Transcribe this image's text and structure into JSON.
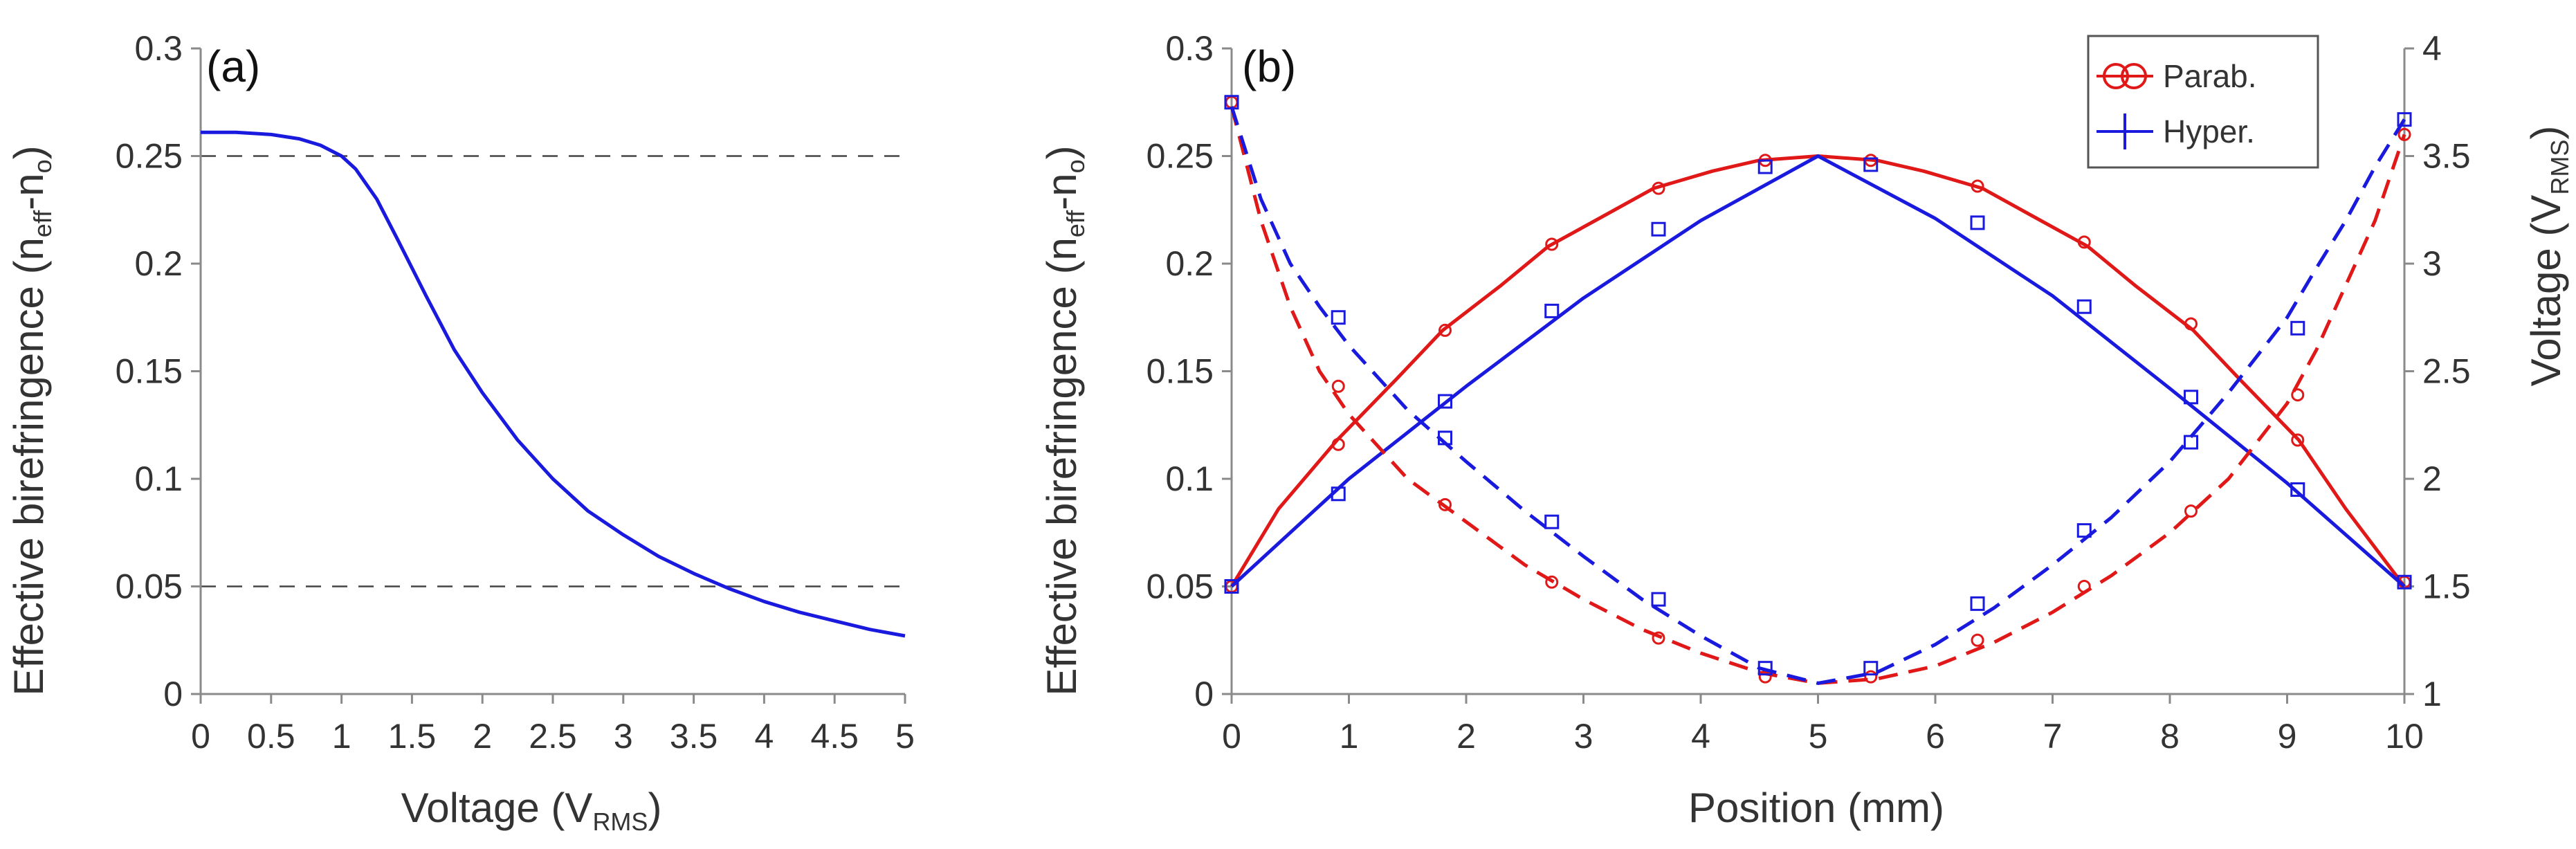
{
  "chart_data": [
    {
      "panel": "(a)",
      "type": "line",
      "xlabel": {
        "main": "Voltage (V",
        "sub": "RMS",
        "close": ")"
      },
      "ylabel": {
        "main": "Effective birefringence (n",
        "sub1": "eff",
        "mid": "-n",
        "sub2": "o",
        "close": ")"
      },
      "xlim": [
        0,
        5
      ],
      "ylim": [
        0,
        0.3
      ],
      "xticks": [
        0,
        0.5,
        1,
        1.5,
        2,
        2.5,
        3,
        3.5,
        4,
        4.5,
        5
      ],
      "xtick_labels": [
        "0",
        "0.5",
        "1",
        "1.5",
        "2",
        "2.5",
        "3",
        "3.5",
        "4",
        "4.5",
        "5"
      ],
      "yticks": [
        0,
        0.05,
        0.1,
        0.15,
        0.2,
        0.25,
        0.3
      ],
      "ytick_labels": [
        "0",
        "0.05",
        "0.1",
        "0.15",
        "0.2",
        "0.25",
        "0.3"
      ],
      "hlines": [
        0.25,
        0.05
      ],
      "series": [
        {
          "name": "birefringence",
          "color": "#1a1adf",
          "style": "solid",
          "x": [
            0,
            0.25,
            0.5,
            0.7,
            0.85,
            1.0,
            1.1,
            1.25,
            1.4,
            1.6,
            1.8,
            2.0,
            2.25,
            2.5,
            2.75,
            3.0,
            3.25,
            3.5,
            3.75,
            4.0,
            4.25,
            4.5,
            4.75,
            5.0
          ],
          "y": [
            0.261,
            0.261,
            0.26,
            0.258,
            0.255,
            0.25,
            0.244,
            0.23,
            0.211,
            0.185,
            0.16,
            0.14,
            0.118,
            0.1,
            0.085,
            0.074,
            0.064,
            0.056,
            0.049,
            0.043,
            0.038,
            0.034,
            0.03,
            0.027
          ]
        }
      ]
    },
    {
      "panel": "(b)",
      "type": "line",
      "xlabel": "Position (mm)",
      "ylabel": {
        "main": "Effective birefringence (n",
        "sub1": "eff",
        "mid": "-n",
        "sub2": "o",
        "close": ")"
      },
      "y2label": {
        "main": "Voltage (V",
        "sub": "RMS",
        "close": ")"
      },
      "xlim": [
        0,
        10
      ],
      "ylim": [
        0,
        0.3
      ],
      "y2lim": [
        1,
        4
      ],
      "xticks": [
        0,
        1,
        2,
        3,
        4,
        5,
        6,
        7,
        8,
        9,
        10
      ],
      "xtick_labels": [
        "0",
        "1",
        "2",
        "3",
        "4",
        "5",
        "6",
        "7",
        "8",
        "9",
        "10"
      ],
      "yticks": [
        0,
        0.05,
        0.1,
        0.15,
        0.2,
        0.25,
        0.3
      ],
      "ytick_labels": [
        "0",
        "0.05",
        "0.1",
        "0.15",
        "0.2",
        "0.25",
        "0.3"
      ],
      "y2ticks": [
        1,
        1.5,
        2,
        2.5,
        3,
        3.5,
        4
      ],
      "y2tick_labels": [
        "1",
        "1.5",
        "2",
        "2.5",
        "3",
        "3.5",
        "4"
      ],
      "legend": {
        "position": "top-right",
        "entries": [
          {
            "label": "Parab.",
            "color": "#e01818"
          },
          {
            "label": "Hyper.",
            "color": "#1a1adf"
          }
        ]
      },
      "series": [
        {
          "name": "Parab. birefringence",
          "color": "#e01818",
          "style": "solid",
          "axis": "left",
          "x": [
            0,
            0.4,
            0.9,
            1.4,
            1.8,
            2.3,
            2.7,
            3.2,
            3.6,
            4.1,
            4.5,
            5.0,
            5.5,
            5.9,
            6.4,
            6.8,
            7.3,
            7.7,
            8.2,
            8.6,
            9.1,
            9.5,
            10.0
          ],
          "y": [
            0.05,
            0.086,
            0.118,
            0.146,
            0.169,
            0.19,
            0.208,
            0.223,
            0.235,
            0.243,
            0.248,
            0.25,
            0.248,
            0.243,
            0.235,
            0.223,
            0.208,
            0.19,
            0.169,
            0.146,
            0.118,
            0.086,
            0.05
          ]
        },
        {
          "name": "Parab. birefringence samples",
          "color": "#e01818",
          "style": "markers",
          "marker": "circle",
          "axis": "left",
          "x": [
            0,
            0.91,
            1.82,
            2.73,
            3.64,
            4.55,
            5.45,
            6.36,
            7.27,
            8.18,
            9.09,
            10.0
          ],
          "y": [
            0.05,
            0.116,
            0.169,
            0.209,
            0.235,
            0.248,
            0.248,
            0.236,
            0.21,
            0.172,
            0.118,
            0.052
          ]
        },
        {
          "name": "Hyper. birefringence",
          "color": "#1a1adf",
          "style": "solid",
          "axis": "left",
          "x": [
            0,
            1,
            2,
            3,
            4,
            5,
            6,
            7,
            8,
            9,
            10
          ],
          "y": [
            0.05,
            0.1,
            0.143,
            0.184,
            0.22,
            0.25,
            0.221,
            0.185,
            0.142,
            0.098,
            0.05
          ]
        },
        {
          "name": "Hyper. birefringence samples",
          "color": "#1a1adf",
          "style": "markers",
          "marker": "square",
          "axis": "left",
          "x": [
            0,
            0.91,
            1.82,
            2.73,
            3.64,
            4.55,
            5.45,
            6.36,
            7.27,
            8.18,
            9.09,
            10.0
          ],
          "y": [
            0.05,
            0.093,
            0.136,
            0.178,
            0.216,
            0.245,
            0.246,
            0.219,
            0.18,
            0.138,
            0.095,
            0.052
          ]
        },
        {
          "name": "Parab. voltage",
          "color": "#e01818",
          "style": "dashed",
          "axis": "right",
          "x": [
            0,
            0.25,
            0.5,
            0.75,
            1,
            1.5,
            2,
            2.5,
            3,
            3.5,
            4,
            4.5,
            5,
            5.5,
            6,
            6.5,
            7,
            7.5,
            8,
            8.5,
            9,
            9.25,
            9.5,
            9.75,
            10
          ],
          "y": [
            3.73,
            3.2,
            2.8,
            2.5,
            2.3,
            2.0,
            1.8,
            1.6,
            1.44,
            1.3,
            1.19,
            1.1,
            1.05,
            1.07,
            1.13,
            1.24,
            1.38,
            1.55,
            1.75,
            2.0,
            2.35,
            2.6,
            2.9,
            3.2,
            3.6
          ]
        },
        {
          "name": "Parab. voltage samples",
          "color": "#e01818",
          "style": "markers",
          "marker": "circle",
          "axis": "right",
          "x": [
            0,
            0.91,
            1.82,
            2.73,
            3.64,
            4.55,
            5.45,
            6.36,
            7.27,
            8.18,
            9.09,
            10.0
          ],
          "y": [
            3.75,
            2.43,
            1.88,
            1.52,
            1.26,
            1.08,
            1.08,
            1.25,
            1.5,
            1.85,
            2.39,
            3.6
          ]
        },
        {
          "name": "Hyper. voltage",
          "color": "#1a1adf",
          "style": "dashed",
          "axis": "right",
          "x": [
            0,
            0.25,
            0.5,
            0.75,
            1,
            1.5,
            2,
            2.5,
            3,
            3.5,
            4,
            4.5,
            5,
            5.5,
            6,
            6.5,
            7,
            7.5,
            8,
            8.5,
            9,
            9.25,
            9.5,
            9.75,
            10
          ],
          "y": [
            3.73,
            3.3,
            3.0,
            2.8,
            2.62,
            2.32,
            2.08,
            1.85,
            1.64,
            1.44,
            1.27,
            1.12,
            1.05,
            1.1,
            1.23,
            1.4,
            1.6,
            1.82,
            2.08,
            2.4,
            2.75,
            2.98,
            3.2,
            3.45,
            3.67
          ]
        },
        {
          "name": "Hyper. voltage samples",
          "color": "#1a1adf",
          "style": "markers",
          "marker": "square",
          "axis": "right",
          "x": [
            0,
            0.91,
            1.82,
            2.73,
            3.64,
            4.55,
            5.45,
            6.36,
            7.27,
            8.18,
            9.09,
            10.0
          ],
          "y": [
            3.75,
            2.75,
            2.19,
            1.8,
            1.44,
            1.12,
            1.12,
            1.42,
            1.76,
            2.17,
            2.7,
            3.67
          ]
        }
      ]
    }
  ]
}
